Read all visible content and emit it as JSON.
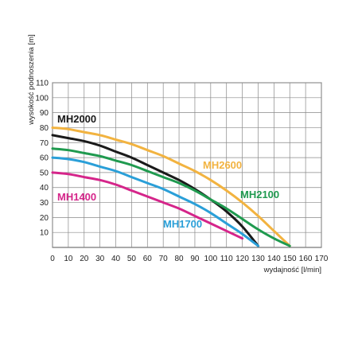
{
  "chart_data": {
    "type": "line",
    "title": "",
    "xlabel": "wydajność [l/min]",
    "ylabel": "wysokość podnoszenia [m]",
    "xlim": [
      0,
      170
    ],
    "ylim": [
      0,
      110
    ],
    "x_ticks": [
      "0",
      "10",
      "20",
      "30",
      "40",
      "50",
      "60",
      "70",
      "80",
      "90",
      "100",
      "110",
      "120",
      "130",
      "140",
      "150",
      "160",
      "170"
    ],
    "y_ticks": [
      "10",
      "20",
      "30",
      "40",
      "50",
      "60",
      "70",
      "80",
      "90",
      "100",
      "110"
    ],
    "grid": true,
    "series": [
      {
        "name": "MH2000",
        "color": "#1a1a1a",
        "label_position": "top-left",
        "x": [
          0,
          10,
          20,
          30,
          40,
          50,
          60,
          70,
          80,
          90,
          100,
          110,
          120,
          130
        ],
        "y": [
          75,
          73,
          71,
          68,
          64,
          60,
          55,
          50,
          45,
          39,
          32,
          24,
          14,
          1
        ]
      },
      {
        "name": "MH2600",
        "color": "#f2b340",
        "label_position": "right",
        "x": [
          0,
          10,
          20,
          30,
          40,
          50,
          60,
          70,
          80,
          90,
          100,
          110,
          120,
          130,
          140,
          150
        ],
        "y": [
          80,
          79,
          77,
          75,
          72,
          69,
          65,
          61,
          56,
          51,
          45,
          38,
          30,
          21,
          11,
          1
        ]
      },
      {
        "name": "MH2100",
        "color": "#1f9a4f",
        "label_position": "right",
        "x": [
          0,
          10,
          20,
          30,
          40,
          50,
          60,
          70,
          80,
          90,
          100,
          110,
          120,
          130,
          140,
          150
        ],
        "y": [
          66,
          65,
          63,
          61,
          58,
          55,
          51,
          47,
          43,
          38,
          32,
          26,
          19,
          12,
          6,
          1
        ]
      },
      {
        "name": "MH1700",
        "color": "#2a9fd8",
        "label_position": "bottom",
        "x": [
          0,
          10,
          20,
          30,
          40,
          50,
          60,
          70,
          80,
          90,
          100,
          110,
          120,
          130
        ],
        "y": [
          60,
          59,
          57,
          54,
          51,
          47,
          43,
          39,
          34,
          29,
          23,
          16,
          9,
          1
        ]
      },
      {
        "name": "MH1400",
        "color": "#d5258a",
        "label_position": "left",
        "x": [
          0,
          10,
          20,
          30,
          40,
          50,
          60,
          70,
          80,
          90,
          100,
          110,
          120
        ],
        "y": [
          50,
          49,
          47,
          45,
          42,
          38,
          34,
          30,
          26,
          21,
          16,
          11,
          6
        ]
      }
    ]
  }
}
